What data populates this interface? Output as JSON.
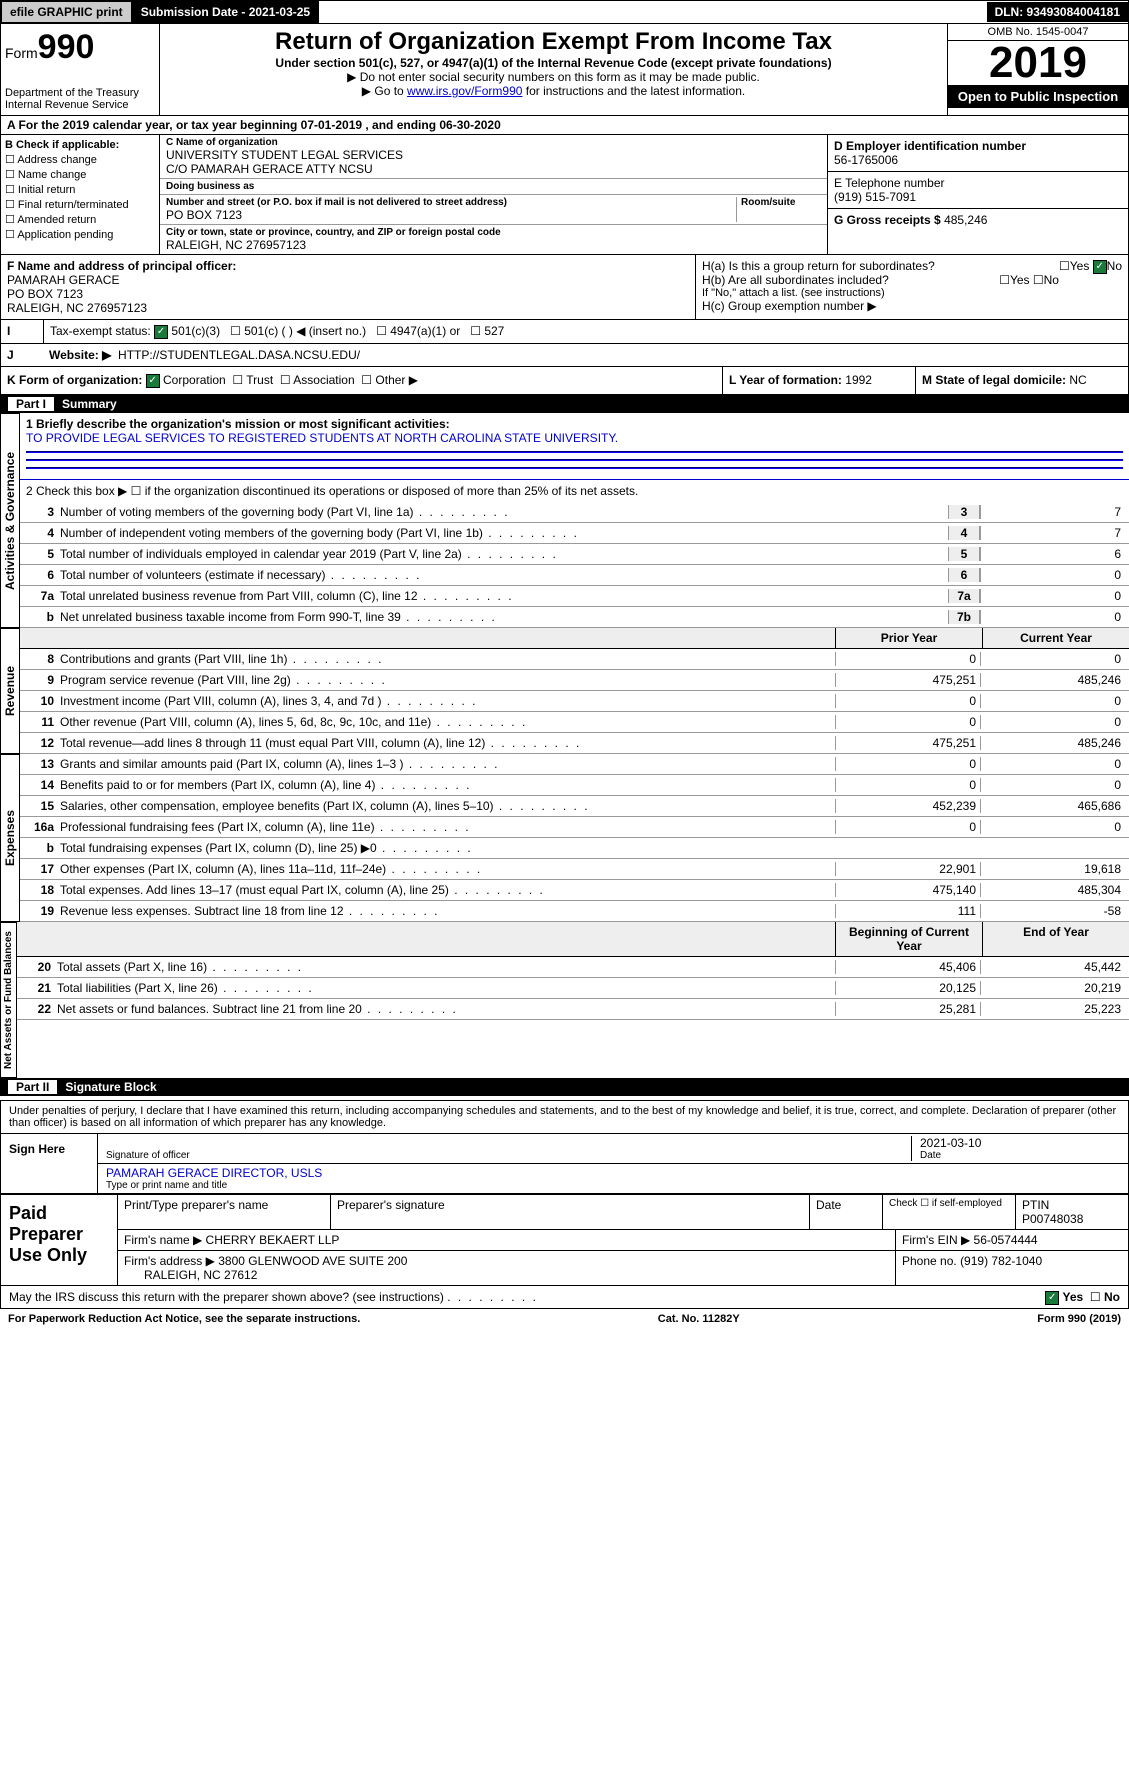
{
  "topbar": {
    "efile": "efile GRAPHIC print",
    "submission_label": "Submission Date - 2021-03-25",
    "dln": "DLN: 93493084004181"
  },
  "header": {
    "form_prefix": "Form",
    "form_number": "990",
    "dept": "Department of the Treasury\nInternal Revenue Service",
    "title": "Return of Organization Exempt From Income Tax",
    "subtitle": "Under section 501(c), 527, or 4947(a)(1) of the Internal Revenue Code (except private foundations)",
    "note1": "▶ Do not enter social security numbers on this form as it may be made public.",
    "note2_pre": "▶ Go to ",
    "note2_link": "www.irs.gov/Form990",
    "note2_post": " for instructions and the latest information.",
    "omb": "OMB No. 1545-0047",
    "year": "2019",
    "open_public": "Open to Public Inspection"
  },
  "row_a": "A For the 2019 calendar year, or tax year beginning 07-01-2019   , and ending 06-30-2020",
  "section_b": {
    "label": "B Check if applicable:",
    "items": [
      "Address change",
      "Name change",
      "Initial return",
      "Final return/terminated",
      "Amended return",
      "Application pending"
    ]
  },
  "section_c": {
    "name_label": "C Name of organization",
    "name": "UNIVERSITY STUDENT LEGAL SERVICES",
    "care_of": "C/O PAMARAH GERACE ATTY NCSU",
    "dba_label": "Doing business as",
    "dba": "",
    "street_label": "Number and street (or P.O. box if mail is not delivered to street address)",
    "street": "PO BOX 7123",
    "room_label": "Room/suite",
    "city_label": "City or town, state or province, country, and ZIP or foreign postal code",
    "city": "RALEIGH, NC  276957123"
  },
  "section_d": {
    "ein_label": "D Employer identification number",
    "ein": "56-1765006",
    "phone_label": "E Telephone number",
    "phone": "(919) 515-7091",
    "gross_label": "G Gross receipts $",
    "gross": "485,246"
  },
  "section_f": {
    "label": "F  Name and address of principal officer:",
    "name": "PAMARAH GERACE",
    "addr1": "PO BOX 7123",
    "addr2": "RALEIGH, NC  276957123"
  },
  "section_h": {
    "ha": "H(a)  Is this a group return for subordinates?",
    "hb": "H(b)  Are all subordinates included?",
    "hb_note": "If \"No,\" attach a list. (see instructions)",
    "hc": "H(c)  Group exemption number ▶"
  },
  "row_i": {
    "label": "Tax-exempt status:",
    "opts": [
      "501(c)(3)",
      "501(c) (   ) ◀ (insert no.)",
      "4947(a)(1) or",
      "527"
    ]
  },
  "row_j": {
    "label": "Website: ▶",
    "url": "HTTP://STUDENTLEGAL.DASA.NCSU.EDU/"
  },
  "row_k": {
    "label": "K Form of organization:",
    "opts": [
      "Corporation",
      "Trust",
      "Association",
      "Other ▶"
    ],
    "l_label": "L Year of formation:",
    "l_val": "1992",
    "m_label": "M State of legal domicile:",
    "m_val": "NC"
  },
  "part1": {
    "title": "Part I",
    "name": "Summary",
    "line1_label": "1  Briefly describe the organization's mission or most significant activities:",
    "line1_text": "TO PROVIDE LEGAL SERVICES TO REGISTERED STUDENTS AT NORTH CAROLINA STATE UNIVERSITY.",
    "line2": "2  Check this box ▶ ☐  if the organization discontinued its operations or disposed of more than 25% of its net assets.",
    "vtab_ag": "Activities & Governance",
    "vtab_rev": "Revenue",
    "vtab_exp": "Expenses",
    "vtab_net": "Net Assets or Fund Balances",
    "lines_single": [
      {
        "num": "3",
        "desc": "Number of voting members of the governing body (Part VI, line 1a)",
        "box": "3",
        "val": "7"
      },
      {
        "num": "4",
        "desc": "Number of independent voting members of the governing body (Part VI, line 1b)",
        "box": "4",
        "val": "7"
      },
      {
        "num": "5",
        "desc": "Total number of individuals employed in calendar year 2019 (Part V, line 2a)",
        "box": "5",
        "val": "6"
      },
      {
        "num": "6",
        "desc": "Total number of volunteers (estimate if necessary)",
        "box": "6",
        "val": "0"
      },
      {
        "num": "7a",
        "desc": "Total unrelated business revenue from Part VIII, column (C), line 12",
        "box": "7a",
        "val": "0"
      },
      {
        "num": "b",
        "desc": "Net unrelated business taxable income from Form 990-T, line 39",
        "box": "7b",
        "val": "0"
      }
    ],
    "col_hdr_prior": "Prior Year",
    "col_hdr_current": "Current Year",
    "revenue": [
      {
        "num": "8",
        "desc": "Contributions and grants (Part VIII, line 1h)",
        "prior": "0",
        "curr": "0"
      },
      {
        "num": "9",
        "desc": "Program service revenue (Part VIII, line 2g)",
        "prior": "475,251",
        "curr": "485,246"
      },
      {
        "num": "10",
        "desc": "Investment income (Part VIII, column (A), lines 3, 4, and 7d )",
        "prior": "0",
        "curr": "0"
      },
      {
        "num": "11",
        "desc": "Other revenue (Part VIII, column (A), lines 5, 6d, 8c, 9c, 10c, and 11e)",
        "prior": "0",
        "curr": "0"
      },
      {
        "num": "12",
        "desc": "Total revenue—add lines 8 through 11 (must equal Part VIII, column (A), line 12)",
        "prior": "475,251",
        "curr": "485,246"
      }
    ],
    "expenses": [
      {
        "num": "13",
        "desc": "Grants and similar amounts paid (Part IX, column (A), lines 1–3 )",
        "prior": "0",
        "curr": "0"
      },
      {
        "num": "14",
        "desc": "Benefits paid to or for members (Part IX, column (A), line 4)",
        "prior": "0",
        "curr": "0"
      },
      {
        "num": "15",
        "desc": "Salaries, other compensation, employee benefits (Part IX, column (A), lines 5–10)",
        "prior": "452,239",
        "curr": "465,686"
      },
      {
        "num": "16a",
        "desc": "Professional fundraising fees (Part IX, column (A), line 11e)",
        "prior": "0",
        "curr": "0"
      },
      {
        "num": "b",
        "desc": "Total fundraising expenses (Part IX, column (D), line 25) ▶0",
        "prior": "",
        "curr": ""
      },
      {
        "num": "17",
        "desc": "Other expenses (Part IX, column (A), lines 11a–11d, 11f–24e)",
        "prior": "22,901",
        "curr": "19,618"
      },
      {
        "num": "18",
        "desc": "Total expenses. Add lines 13–17 (must equal Part IX, column (A), line 25)",
        "prior": "475,140",
        "curr": "485,304"
      },
      {
        "num": "19",
        "desc": "Revenue less expenses. Subtract line 18 from line 12",
        "prior": "111",
        "curr": "-58"
      }
    ],
    "col_hdr_begin": "Beginning of Current Year",
    "col_hdr_end": "End of Year",
    "netassets": [
      {
        "num": "20",
        "desc": "Total assets (Part X, line 16)",
        "prior": "45,406",
        "curr": "45,442"
      },
      {
        "num": "21",
        "desc": "Total liabilities (Part X, line 26)",
        "prior": "20,125",
        "curr": "20,219"
      },
      {
        "num": "22",
        "desc": "Net assets or fund balances. Subtract line 21 from line 20",
        "prior": "25,281",
        "curr": "25,223"
      }
    ]
  },
  "part2": {
    "title": "Part II",
    "name": "Signature Block",
    "declaration": "Under penalties of perjury, I declare that I have examined this return, including accompanying schedules and statements, and to the best of my knowledge and belief, it is true, correct, and complete. Declaration of preparer (other than officer) is based on all information of which preparer has any knowledge.",
    "sign_here": "Sign Here",
    "sig_date": "2021-03-10",
    "sig_officer_label": "Signature of officer",
    "date_label": "Date",
    "officer_name": "PAMARAH GERACE  DIRECTOR, USLS",
    "officer_name_label": "Type or print name and title"
  },
  "paid": {
    "label": "Paid Preparer Use Only",
    "prep_name_label": "Print/Type preparer's name",
    "prep_sig_label": "Preparer's signature",
    "date_label": "Date",
    "check_label": "Check ☐ if self-employed",
    "ptin_label": "PTIN",
    "ptin": "P00748038",
    "firm_name_label": "Firm's name   ▶",
    "firm_name": "CHERRY BEKAERT LLP",
    "firm_ein_label": "Firm's EIN ▶",
    "firm_ein": "56-0574444",
    "firm_addr_label": "Firm's address ▶",
    "firm_addr1": "3800 GLENWOOD AVE SUITE 200",
    "firm_addr2": "RALEIGH, NC  27612",
    "phone_label": "Phone no.",
    "phone": "(919) 782-1040"
  },
  "discuss": "May the IRS discuss this return with the preparer shown above? (see instructions)",
  "footer": {
    "left": "For Paperwork Reduction Act Notice, see the separate instructions.",
    "mid": "Cat. No. 11282Y",
    "right": "Form 990 (2019)"
  }
}
